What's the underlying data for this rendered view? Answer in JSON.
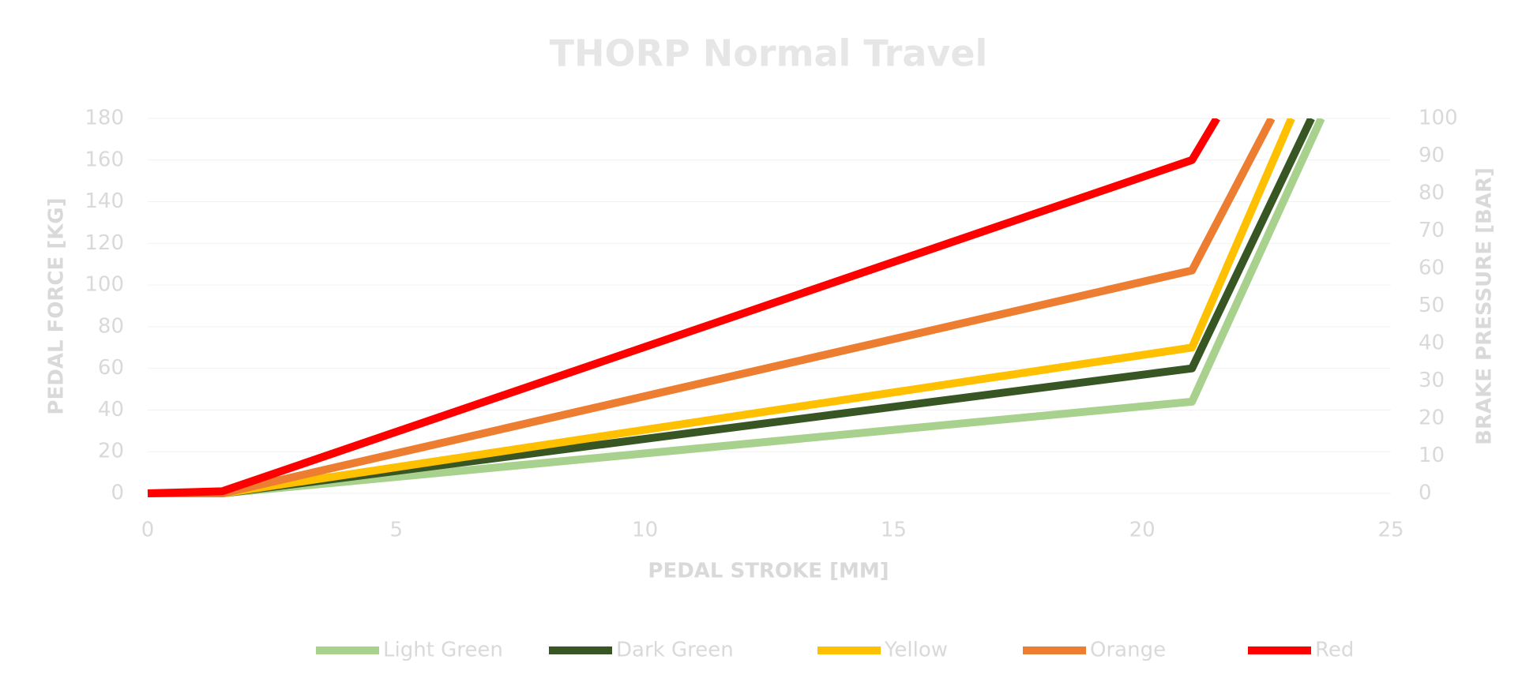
{
  "chart_data": {
    "type": "line",
    "title": "THORP Normal Travel",
    "xlabel": "PEDAL STROKE [MM]",
    "ylabel": "PEDAL FORCE [KG]",
    "y2label": "BRAKE PRESSURE [BAR]",
    "xlim": [
      0,
      25
    ],
    "xticks": [
      0,
      5,
      10,
      15,
      20,
      25
    ],
    "ylim": [
      0,
      180
    ],
    "yticks": [
      0,
      20,
      40,
      60,
      80,
      100,
      120,
      140,
      160,
      180
    ],
    "y2lim": [
      0,
      100
    ],
    "y2ticks": [
      0,
      10,
      20,
      30,
      40,
      50,
      60,
      70,
      80,
      90,
      100
    ],
    "grid": true,
    "legend": "bottom",
    "series": [
      {
        "name": "Light Green",
        "color": "#a9d18e",
        "x": [
          0,
          1.5,
          21,
          23.6
        ],
        "values": [
          0,
          0,
          44,
          180
        ]
      },
      {
        "name": "Dark Green",
        "color": "#375623",
        "x": [
          0,
          1.5,
          21,
          23.4
        ],
        "values": [
          0,
          0,
          60,
          180
        ]
      },
      {
        "name": "Yellow",
        "color": "#ffc000",
        "x": [
          0,
          1.5,
          21,
          23.0
        ],
        "values": [
          0,
          0,
          70,
          180
        ]
      },
      {
        "name": "Orange",
        "color": "#ed7d31",
        "x": [
          0,
          1.5,
          21,
          22.6
        ],
        "values": [
          0,
          0,
          107,
          180
        ]
      },
      {
        "name": "Red",
        "color": "#ff0000",
        "x": [
          0,
          1.5,
          21,
          21.5
        ],
        "values": [
          0,
          1,
          160,
          180
        ]
      }
    ]
  }
}
